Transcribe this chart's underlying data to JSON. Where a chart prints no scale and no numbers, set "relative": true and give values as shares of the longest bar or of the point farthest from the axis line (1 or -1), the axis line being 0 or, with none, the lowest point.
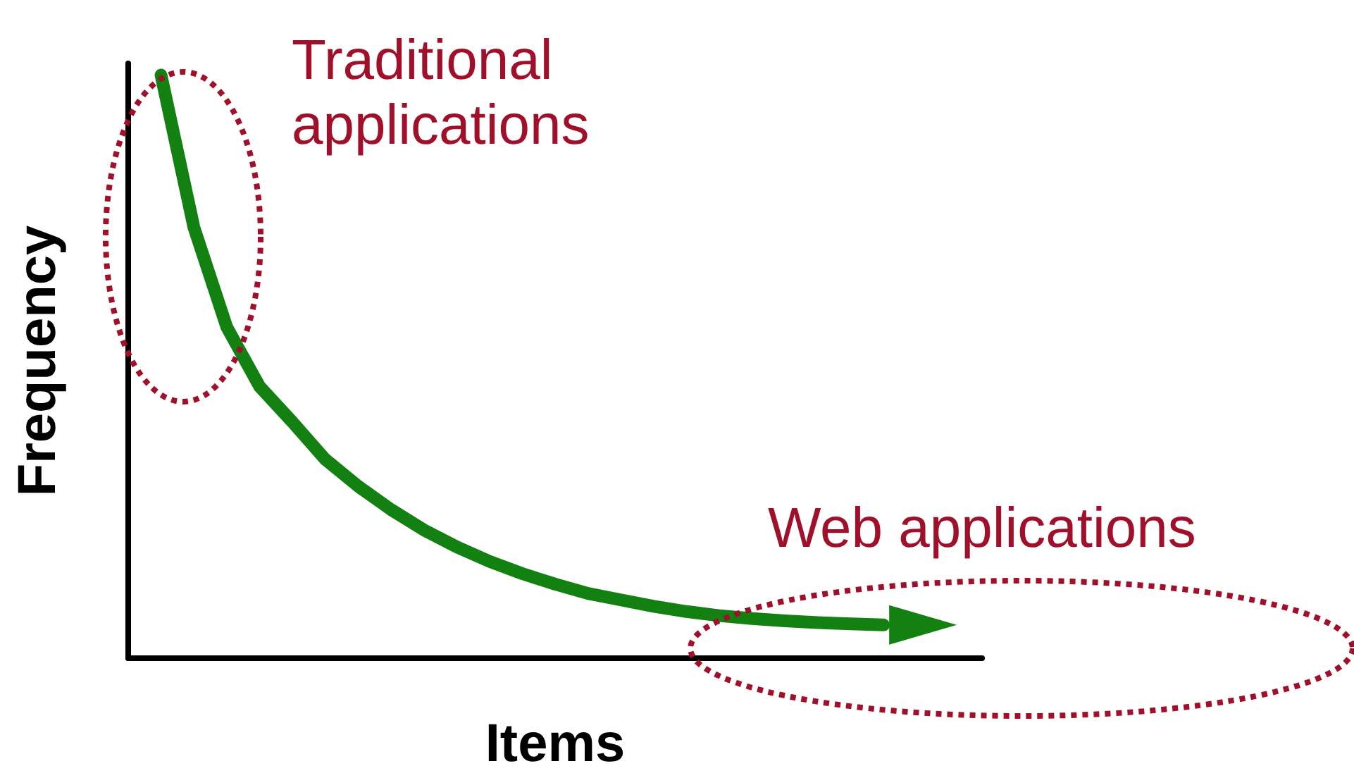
{
  "chart_data": {
    "type": "line",
    "relative": true,
    "xlabel": "Items",
    "ylabel": "Frequency",
    "annotations": [
      "Traditional applications",
      "Web applications"
    ],
    "grid": false,
    "categories": [
      null,
      null,
      null,
      null,
      null,
      null,
      null,
      null,
      null,
      null,
      null,
      null,
      null,
      null,
      null,
      null,
      null,
      null,
      null,
      null,
      null,
      null,
      null
    ],
    "series": [
      {
        "color": "#138012",
        "values": [
          1.0,
          0.739,
          0.568,
          0.466,
          0.405,
          0.341,
          0.295,
          0.255,
          0.22,
          0.191,
          0.166,
          0.145,
          0.127,
          0.111,
          0.1,
          0.089,
          0.08,
          0.073,
          0.068,
          0.064,
          0.061,
          0.059,
          0.057
        ]
      }
    ]
  }
}
